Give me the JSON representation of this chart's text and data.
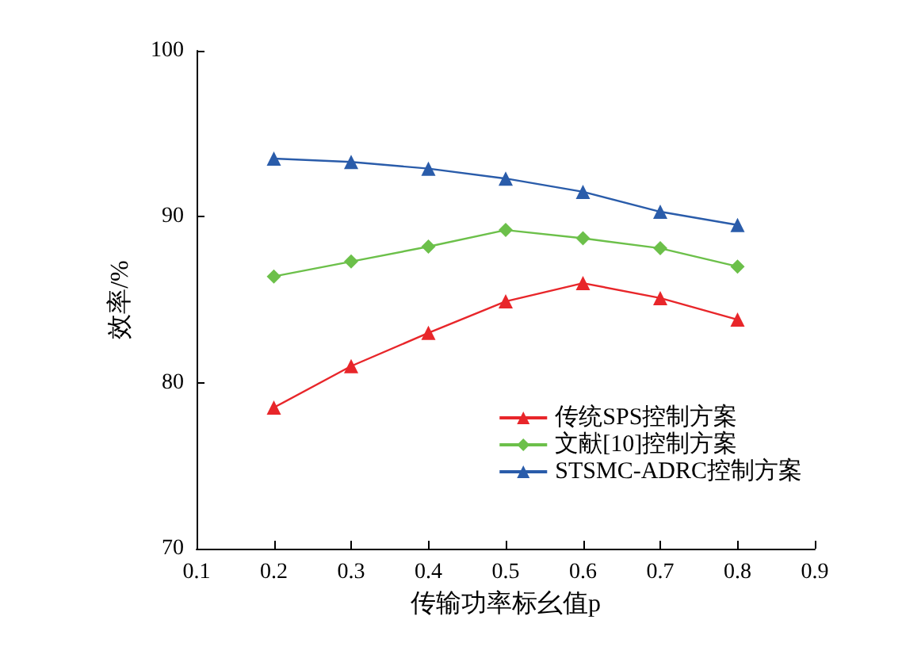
{
  "chart_data": {
    "type": "line",
    "xlabel": "传输功率标幺值p",
    "ylabel": "效率/%",
    "x": [
      0.2,
      0.3,
      0.4,
      0.5,
      0.6,
      0.7,
      0.8
    ],
    "series": [
      {
        "name": "传统SPS控制方案",
        "color": "#e8262a",
        "marker": "triangle",
        "values": [
          78.5,
          81.0,
          83.0,
          84.9,
          86.0,
          85.1,
          83.8
        ]
      },
      {
        "name": "文献[10]控制方案",
        "color": "#6cc04a",
        "marker": "diamond",
        "values": [
          86.4,
          87.3,
          88.2,
          89.2,
          88.7,
          88.1,
          87.0
        ]
      },
      {
        "name": "STSMC-ADRC控制方案",
        "color": "#2a5caa",
        "marker": "triangle",
        "values": [
          93.5,
          93.3,
          92.9,
          92.3,
          91.5,
          90.3,
          89.5
        ]
      }
    ],
    "xlim": [
      0.1,
      0.9
    ],
    "xticks": [
      0.1,
      0.2,
      0.3,
      0.4,
      0.5,
      0.6,
      0.7,
      0.8,
      0.9
    ],
    "ylim": [
      70,
      100
    ],
    "yticks": [
      70,
      80,
      90,
      100
    ],
    "grid": false,
    "legend": "bottom right"
  }
}
